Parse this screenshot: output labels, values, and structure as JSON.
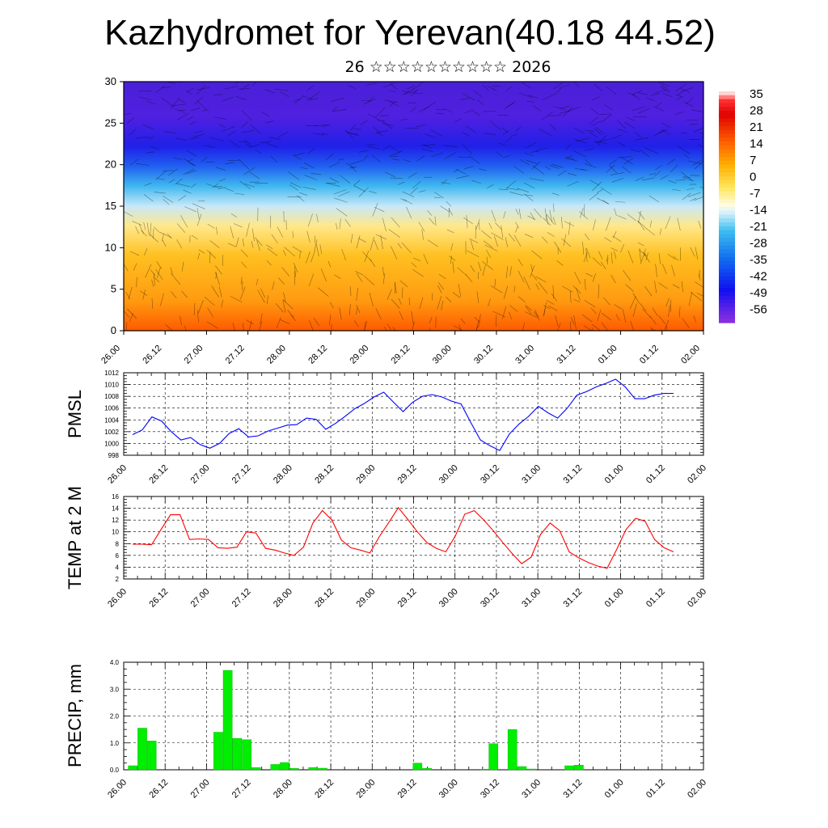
{
  "title": "Kazhydromet for Yerevan(40.18 44.52)",
  "subtitle": "26 ☆☆☆☆☆☆☆☆☆☆ 2026",
  "x_ticks": [
    "26.00",
    "26.12",
    "27.00",
    "27.12",
    "28.00",
    "28.12",
    "29.00",
    "29.12",
    "30.00",
    "30.12",
    "31.00",
    "31.12",
    "01.00",
    "01.12",
    "02.00"
  ],
  "chart_data": [
    {
      "type": "heatmap",
      "description_of_fields": "temperature cross-section with wind barbs",
      "ylim": [
        0,
        30
      ],
      "y_ticks": [
        "0",
        "5",
        "10",
        "15",
        "20",
        "25",
        "30"
      ],
      "colorbar_labels": [
        "35",
        "28",
        "21",
        "14",
        "7",
        "0",
        "-7",
        "-14",
        "-21",
        "-28",
        "-35",
        "-42",
        "-49",
        "-56"
      ],
      "colorbar_colors": [
        "#ffffff",
        "#ff0000",
        "#ff8c00",
        "#ffd700",
        "#ffff99",
        "#ffffff",
        "#87cefa",
        "#00bfff",
        "#1e90ff",
        "#0000ff",
        "#4b0082",
        "#9400d3"
      ]
    },
    {
      "type": "line",
      "ylabel": "PMSL",
      "ylim": [
        998,
        1012
      ],
      "y_ticks": [
        "998",
        "1000",
        "1002",
        "1004",
        "1006",
        "1008",
        "1010",
        "1012"
      ],
      "color": "#0000ff",
      "series": [
        {
          "values": [
            1001.5,
            1002.3,
            1004.5,
            1003.8,
            1002.0,
            1000.6,
            1001.0,
            999.8,
            999.2,
            1000.0,
            1001.7,
            1002.5,
            1001.1,
            1001.3,
            1002.1,
            1002.6,
            1003.1,
            1003.2,
            1004.3,
            1004.1,
            1002.4,
            1003.4,
            1004.6,
            1005.9,
            1006.8,
            1007.9,
            1008.7,
            1007.0,
            1005.4,
            1007.0,
            1008.0,
            1008.3,
            1007.9,
            1007.2,
            1006.7,
            1003.6,
            1000.6,
            999.6,
            998.8,
            1001.6,
            1003.3,
            1004.6,
            1006.3,
            1005.2,
            1004.3,
            1006.0,
            1008.2,
            1008.8,
            1009.6,
            1010.2,
            1010.9,
            1009.6,
            1007.6,
            1007.6,
            1008.2,
            1008.5,
            1008.5
          ]
        }
      ]
    },
    {
      "type": "line",
      "ylabel": "TEMP at 2 M",
      "ylim": [
        2,
        16
      ],
      "y_ticks": [
        "2",
        "4",
        "6",
        "8",
        "10",
        "12",
        "14",
        "16"
      ],
      "color": "#ff0000",
      "series": [
        {
          "values": [
            7.9,
            7.9,
            7.8,
            10.4,
            12.9,
            12.9,
            8.7,
            8.8,
            8.7,
            7.3,
            7.2,
            7.4,
            10.0,
            9.8,
            7.2,
            6.9,
            6.4,
            6.0,
            7.4,
            11.5,
            13.6,
            12.0,
            8.6,
            7.3,
            6.9,
            6.4,
            9.2,
            11.6,
            14.1,
            12.1,
            10.0,
            8.2,
            7.2,
            6.6,
            9.3,
            13.0,
            13.6,
            12.0,
            10.2,
            8.2,
            6.3,
            4.6,
            5.7,
            9.6,
            11.5,
            10.2,
            6.6,
            5.6,
            4.8,
            4.2,
            3.8,
            7.0,
            10.4,
            12.3,
            11.8,
            8.7,
            7.3,
            6.6
          ]
        }
      ]
    },
    {
      "type": "bar",
      "ylabel": "PRECIP, mm",
      "ylim": [
        0,
        4
      ],
      "y_ticks": [
        "0.0",
        "1.0",
        "2.0",
        "3.0",
        "4.0"
      ],
      "color": "#00ee00",
      "values": [
        0.15,
        1.55,
        1.07,
        0,
        0,
        0,
        0,
        0,
        0,
        1.4,
        3.7,
        1.17,
        1.12,
        0.08,
        0,
        0.2,
        0.27,
        0.05,
        0,
        0.08,
        0.06,
        0,
        0,
        0,
        0,
        0,
        0,
        0,
        0,
        0,
        0.25,
        0.05,
        0,
        0,
        0,
        0,
        0,
        0.02,
        0.97,
        0,
        1.5,
        0.12,
        0.03,
        0,
        0,
        0,
        0.15,
        0.17,
        0,
        0,
        0,
        0,
        0,
        0,
        0,
        0,
        0,
        0
      ]
    }
  ]
}
